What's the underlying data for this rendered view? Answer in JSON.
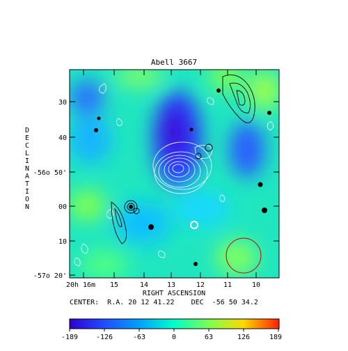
{
  "chart_data": {
    "type": "heatmap",
    "title": "Abell 3667",
    "xlabel": "RIGHT ASCENSION",
    "ylabel": "DECLINATION",
    "center_text": "CENTER:  R.A. 20 12 41.22    DEC  -56 50 34.2",
    "x_ticks": [
      "20h 16m",
      "15",
      "14",
      "13",
      "12",
      "11",
      "10"
    ],
    "y_ticks": [
      "30",
      "40",
      "-56o 50'",
      "00",
      "10",
      "-57o 20'"
    ],
    "colorbar_ticks": [
      "-189",
      "-126",
      "-63",
      "0",
      "63",
      "126",
      "189"
    ],
    "colorbar_range": [
      -189,
      189
    ],
    "colormap": [
      "#3000d0",
      "#1f4fff",
      "#00c0ff",
      "#00ffc8",
      "#7fff50",
      "#ffd800",
      "#ff2000"
    ],
    "contour_colors": {
      "xray": "#ffffff",
      "radio": "#000000",
      "beam": "#c00000"
    }
  }
}
